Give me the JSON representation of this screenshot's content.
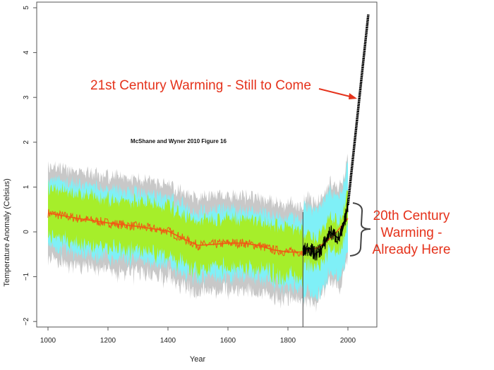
{
  "chart_data": {
    "type": "line",
    "title": "McShane and Wyner 2010 Figure 16",
    "xlabel": "Year",
    "ylabel": "Temperature Anomaly (Celsius)",
    "xlim": [
      960,
      2095
    ],
    "ylim": [
      -2.15,
      5.1
    ],
    "xticks": [
      1000,
      1200,
      1400,
      1600,
      1800,
      2000
    ],
    "yticks": [
      -2,
      -1,
      0,
      1,
      2,
      3,
      4,
      5
    ],
    "grid": false,
    "colors": {
      "gray_band": "#c8c8c8",
      "cyan_band": "#7ff0f7",
      "green_band": "#a6ee2a",
      "reconstruction": "#f05a14",
      "instrumental": "#000000",
      "annotation": "#e5321b"
    },
    "smoothed_reconstruction": {
      "x": [
        1000,
        1050,
        1100,
        1150,
        1200,
        1250,
        1300,
        1350,
        1400,
        1450,
        1500,
        1550,
        1600,
        1650,
        1700,
        1750,
        1800,
        1850,
        1900,
        1950,
        2000
      ],
      "y": [
        0.42,
        0.36,
        0.3,
        0.25,
        0.2,
        0.16,
        0.12,
        0.07,
        0.02,
        -0.15,
        -0.3,
        -0.28,
        -0.25,
        -0.25,
        -0.3,
        -0.4,
        -0.45,
        -0.45,
        -0.35,
        -0.1,
        0.3
      ]
    },
    "band_half_widths": {
      "green": 0.55,
      "cyan": 0.75,
      "gray": 1.05
    },
    "instrumental": {
      "x": [
        1850,
        1870,
        1890,
        1910,
        1930,
        1940,
        1950,
        1960,
        1970,
        1980,
        1990,
        2000
      ],
      "y": [
        -0.45,
        -0.35,
        -0.5,
        -0.4,
        -0.15,
        0.0,
        -0.05,
        -0.1,
        -0.15,
        0.0,
        0.25,
        0.6
      ]
    },
    "projection": {
      "x": [
        2000,
        2068
      ],
      "y": [
        0.6,
        4.85
      ]
    },
    "vertical_line_year": 1850,
    "annotations": {
      "future": "21st Century Warming - Still to Come",
      "past_lines": [
        "20th Century",
        "Warming -",
        "Already Here"
      ]
    }
  }
}
